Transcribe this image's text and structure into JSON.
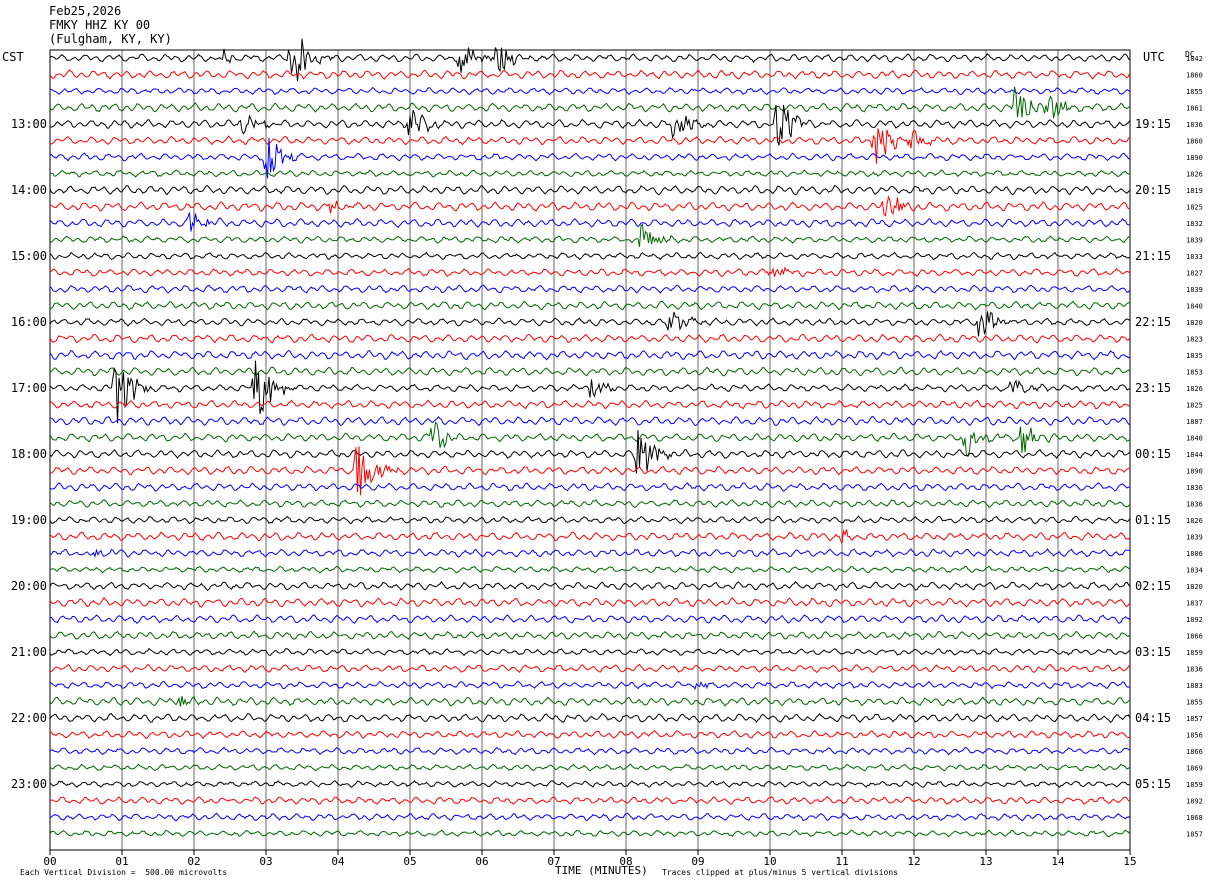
{
  "header": {
    "date": "Feb25,2026",
    "station": "FMKY HHZ KY 00",
    "location": "(Fulgham, KY, KY)"
  },
  "left_tz": "CST",
  "right_tz": "UTC",
  "dc_label": "DC",
  "footer": {
    "scale_note": "Each Vertical Division =  500.00 microvolts",
    "clip_note": "Traces clipped at plus/minus 5 vertical divisions",
    "xlabel": "TIME (MINUTES)"
  },
  "colors": {
    "trace_cycle": [
      "#000000",
      "#ff0000",
      "#0000ff",
      "#006600"
    ],
    "grid": "#000000"
  },
  "chart_data": {
    "type": "line",
    "title": "FMKY HHZ KY 00",
    "xlabel": "TIME (MINUTES)",
    "xlim": [
      0,
      15
    ],
    "x_ticks": [
      "00",
      "01",
      "02",
      "03",
      "04",
      "05",
      "06",
      "07",
      "08",
      "09",
      "10",
      "11",
      "12",
      "13",
      "14",
      "15"
    ],
    "left_time_labels": [
      "13:00",
      "14:00",
      "15:00",
      "16:00",
      "17:00",
      "18:00",
      "19:00",
      "20:00",
      "21:00",
      "22:00",
      "23:00"
    ],
    "right_time_labels": [
      "19:15",
      "20:15",
      "21:15",
      "22:15",
      "23:15",
      "00:15",
      "01:15",
      "02:15",
      "03:15",
      "04:15",
      "05:15"
    ],
    "trace_count": 48,
    "traces_per_hour": 4,
    "first_labeled_trace_index": 4,
    "dc_offsets": [
      "1842",
      "1860",
      "1855",
      "1861",
      "1836",
      "1860",
      "1890",
      "1826",
      "1819",
      "1825",
      "1832",
      "1839",
      "1833",
      "1827",
      "1839",
      "1840",
      "1820",
      "1823",
      "1835",
      "1853",
      "1826",
      "1825",
      "1807",
      "1840",
      "1844",
      "1890",
      "1836",
      "1836",
      "1826",
      "1839",
      "1806",
      "1834",
      "1820",
      "1837",
      "1892",
      "1866",
      "1859",
      "1836",
      "1883",
      "1855",
      "1857",
      "1856",
      "1866",
      "1869",
      "1859",
      "1892",
      "1868",
      "1857"
    ],
    "events": [
      {
        "trace": 0,
        "minute": 3.35,
        "amp": 6
      },
      {
        "trace": 0,
        "minute": 5.7,
        "amp": 3
      },
      {
        "trace": 0,
        "minute": 6.2,
        "amp": 3
      },
      {
        "trace": 0,
        "minute": 2.4,
        "amp": 1
      },
      {
        "trace": 3,
        "minute": 13.4,
        "amp": 4
      },
      {
        "trace": 3,
        "minute": 13.85,
        "amp": 3
      },
      {
        "trace": 4,
        "minute": 2.65,
        "amp": 2
      },
      {
        "trace": 4,
        "minute": 5.0,
        "amp": 3
      },
      {
        "trace": 4,
        "minute": 8.65,
        "amp": 3
      },
      {
        "trace": 4,
        "minute": 10.1,
        "amp": 6
      },
      {
        "trace": 5,
        "minute": 11.45,
        "amp": 5
      },
      {
        "trace": 5,
        "minute": 11.95,
        "amp": 2
      },
      {
        "trace": 6,
        "minute": 3.0,
        "amp": 4
      },
      {
        "trace": 9,
        "minute": 11.6,
        "amp": 4
      },
      {
        "trace": 9,
        "minute": 3.9,
        "amp": 1
      },
      {
        "trace": 10,
        "minute": 1.95,
        "amp": 2
      },
      {
        "trace": 11,
        "minute": 8.2,
        "amp": 3
      },
      {
        "trace": 13,
        "minute": 10.0,
        "amp": 2
      },
      {
        "trace": 16,
        "minute": 8.6,
        "amp": 3
      },
      {
        "trace": 16,
        "minute": 12.9,
        "amp": 3
      },
      {
        "trace": 20,
        "minute": 0.9,
        "amp": 7
      },
      {
        "trace": 20,
        "minute": 2.85,
        "amp": 7
      },
      {
        "trace": 20,
        "minute": 7.5,
        "amp": 2
      },
      {
        "trace": 20,
        "minute": 13.3,
        "amp": 2
      },
      {
        "trace": 23,
        "minute": 5.3,
        "amp": 3
      },
      {
        "trace": 23,
        "minute": 12.7,
        "amp": 3
      },
      {
        "trace": 23,
        "minute": 13.5,
        "amp": 3
      },
      {
        "trace": 24,
        "minute": 8.15,
        "amp": 5
      },
      {
        "trace": 25,
        "minute": 4.25,
        "amp": 6
      },
      {
        "trace": 29,
        "minute": 11.0,
        "amp": 1
      },
      {
        "trace": 30,
        "minute": 0.5,
        "amp": 1
      },
      {
        "trace": 38,
        "minute": 9.0,
        "amp": 1
      },
      {
        "trace": 39,
        "minute": 1.8,
        "amp": 1
      }
    ]
  }
}
